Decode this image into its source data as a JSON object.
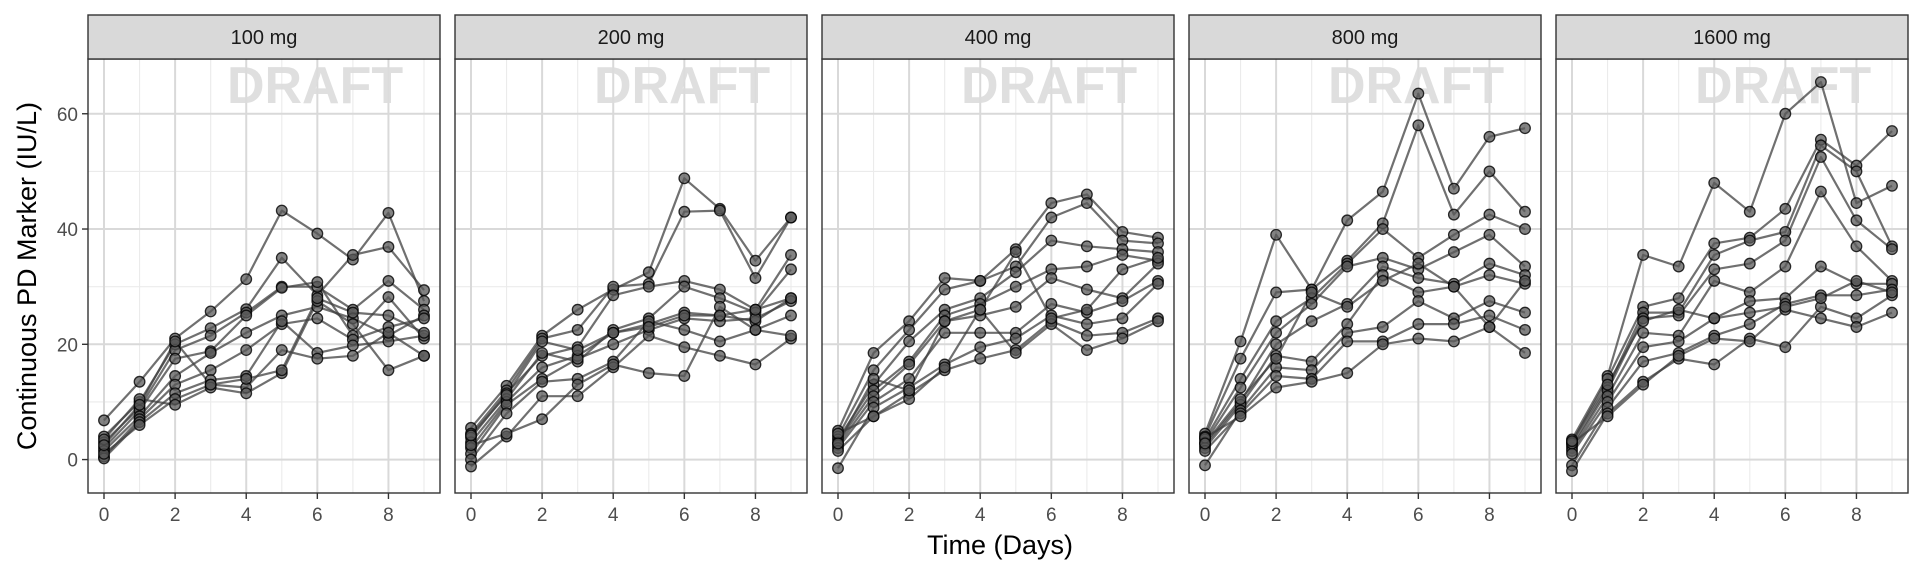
{
  "chart_data": {
    "type": "line",
    "facet_variable": "dose",
    "panels": [
      {
        "label": "100 mg",
        "series": [
          {
            "values": [
              6.8,
              13.5,
              21.0,
              25.7,
              31.3,
              43.2,
              39.2,
              34.7,
              42.8,
              27.5
            ]
          },
          {
            "values": [
              4.0,
              10.0,
              20.0,
              22.8,
              26.1,
              35.0,
              28.5,
              35.5,
              36.9,
              29.4
            ]
          },
          {
            "values": [
              3.0,
              9.0,
              19.0,
              21.5,
              25.5,
              30.0,
              30.0,
              26.0,
              31.0,
              26.0
            ]
          },
          {
            "values": [
              2.0,
              8.5,
              17.5,
              18.8,
              25.0,
              29.8,
              30.8,
              21.5,
              28.2,
              21.0
            ]
          },
          {
            "values": [
              1.5,
              7.5,
              14.5,
              18.5,
              22.0,
              25.0,
              26.5,
              24.5,
              21.5,
              25.0
            ]
          },
          {
            "values": [
              0.5,
              7.0,
              13.0,
              15.5,
              19.0,
              23.5,
              24.5,
              20.8,
              23.0,
              24.5
            ]
          },
          {
            "values": [
              0.2,
              6.5,
              11.5,
              13.8,
              14.5,
              24.0,
              18.5,
              19.8,
              20.5,
              21.5
            ]
          },
          {
            "values": [
              1.0,
              6.0,
              10.5,
              13.0,
              12.5,
              19.0,
              17.5,
              18.0,
              22.0,
              18.0
            ]
          },
          {
            "values": [
              3.5,
              10.5,
              9.5,
              12.5,
              11.5,
              15.0,
              27.5,
              23.5,
              15.5,
              18.0
            ]
          },
          {
            "values": [
              2.5,
              9.5,
              20.5,
              13.0,
              14.0,
              15.5,
              28.0,
              25.5,
              25.0,
              22.0
            ]
          }
        ]
      },
      {
        "label": "200 mg",
        "series": [
          {
            "values": [
              5.5,
              12.8,
              21.5,
              26.0,
              29.5,
              32.5,
              48.8,
              43.5,
              34.5,
              42.0
            ]
          },
          {
            "values": [
              4.5,
              12.0,
              21.0,
              22.5,
              30.0,
              30.5,
              43.0,
              43.2,
              31.5,
              42.0
            ]
          },
          {
            "values": [
              3.8,
              11.5,
              18.0,
              19.5,
              28.5,
              30.0,
              31.0,
              29.5,
              26.0,
              35.5
            ]
          },
          {
            "values": [
              3.0,
              10.5,
              18.5,
              17.0,
              22.5,
              24.5,
              30.0,
              28.0,
              25.5,
              33.0
            ]
          },
          {
            "values": [
              2.0,
              10.0,
              16.0,
              18.0,
              22.0,
              23.5,
              25.5,
              25.0,
              24.0,
              28.0
            ]
          },
          {
            "values": [
              1.0,
              9.5,
              14.0,
              17.5,
              20.0,
              22.5,
              24.5,
              24.0,
              24.5,
              27.5
            ]
          },
          {
            "values": [
              0.0,
              8.0,
              13.5,
              14.0,
              17.0,
              24.0,
              22.5,
              20.5,
              22.5,
              25.0
            ]
          },
          {
            "values": [
              -1.2,
              4.0,
              11.0,
              11.0,
              16.0,
              21.5,
              19.5,
              18.0,
              16.5,
              21.0
            ]
          },
          {
            "values": [
              2.5,
              4.5,
              7.0,
              13.0,
              16.5,
              15.0,
              14.5,
              26.5,
              22.5,
              21.5
            ]
          },
          {
            "values": [
              4.2,
              11.2,
              20.5,
              19.0,
              22.0,
              23.0,
              25.0,
              25.0,
              26.0,
              28.0
            ]
          }
        ]
      },
      {
        "label": "400 mg",
        "series": [
          {
            "values": [
              5.0,
              18.5,
              24.0,
              31.5,
              31.0,
              36.5,
              44.5,
              46.0,
              39.5,
              38.5
            ]
          },
          {
            "values": [
              4.0,
              15.5,
              22.5,
              29.5,
              31.0,
              33.5,
              42.0,
              44.5,
              38.0,
              37.5
            ]
          },
          {
            "values": [
              3.5,
              13.0,
              20.5,
              26.0,
              28.0,
              32.5,
              38.0,
              37.0,
              36.5,
              36.0
            ]
          },
          {
            "values": [
              3.0,
              12.0,
              17.0,
              25.0,
              27.0,
              30.0,
              33.0,
              33.5,
              35.5,
              34.5
            ]
          },
          {
            "values": [
              2.5,
              11.0,
              16.5,
              24.0,
              25.0,
              26.5,
              31.5,
              29.5,
              28.0,
              34.0
            ]
          },
          {
            "values": [
              2.0,
              10.0,
              14.0,
              22.0,
              22.0,
              22.0,
              27.0,
              25.5,
              27.5,
              31.0
            ]
          },
          {
            "values": [
              -1.5,
              9.0,
              12.5,
              16.5,
              19.5,
              21.0,
              25.0,
              23.5,
              24.5,
              30.5
            ]
          },
          {
            "values": [
              1.5,
              7.5,
              11.5,
              15.5,
              17.5,
              19.0,
              24.0,
              21.5,
              22.0,
              24.5
            ]
          },
          {
            "values": [
              4.5,
              7.5,
              10.5,
              16.0,
              26.0,
              18.5,
              23.5,
              19.0,
              21.0,
              24.0
            ]
          },
          {
            "values": [
              2.8,
              14.0,
              12.0,
              24.0,
              26.0,
              36.0,
              24.5,
              26.0,
              33.0,
              35.0
            ]
          }
        ]
      },
      {
        "label": "800 mg",
        "series": [
          {
            "values": [
              4.5,
              20.5,
              39.0,
              29.5,
              41.5,
              46.5,
              63.5,
              47.0,
              56.0,
              57.5
            ]
          },
          {
            "values": [
              4.0,
              17.5,
              29.0,
              29.5,
              34.5,
              41.0,
              58.0,
              42.5,
              50.0,
              43.0
            ]
          },
          {
            "values": [
              3.5,
              14.0,
              24.0,
              28.0,
              34.0,
              40.0,
              35.0,
              39.0,
              42.5,
              40.0
            ]
          },
          {
            "values": [
              3.0,
              12.5,
              22.0,
              27.0,
              33.5,
              35.0,
              33.0,
              36.0,
              39.0,
              33.5
            ]
          },
          {
            "values": [
              2.5,
              10.0,
              20.0,
              24.0,
              27.0,
              33.5,
              31.5,
              30.5,
              34.0,
              32.0
            ]
          },
          {
            "values": [
              2.0,
              9.5,
              18.0,
              17.0,
              23.5,
              32.0,
              29.0,
              30.0,
              32.0,
              30.5
            ]
          },
          {
            "values": [
              -1.0,
              8.5,
              16.0,
              15.5,
              22.0,
              23.0,
              27.5,
              24.5,
              27.5,
              25.5
            ]
          },
          {
            "values": [
              1.5,
              8.0,
              14.5,
              14.0,
              20.5,
              20.5,
              23.5,
              23.5,
              25.0,
              22.5
            ]
          },
          {
            "values": [
              3.8,
              7.5,
              12.5,
              13.5,
              15.0,
              20.0,
              21.0,
              20.5,
              23.0,
              18.5
            ]
          },
          {
            "values": [
              2.8,
              10.5,
              17.5,
              29.0,
              26.5,
              31.0,
              34.0,
              30.0,
              23.0,
              31.0
            ]
          }
        ]
      },
      {
        "label": "1600 mg",
        "series": [
          {
            "values": [
              3.5,
              14.5,
              35.5,
              33.5,
              48.0,
              43.0,
              60.0,
              65.5,
              44.5,
              47.5
            ]
          },
          {
            "values": [
              3.0,
              14.0,
              26.5,
              28.0,
              37.5,
              38.5,
              43.5,
              55.5,
              51.0,
              57.0
            ]
          },
          {
            "values": [
              2.5,
              12.5,
              25.5,
              25.5,
              35.5,
              38.0,
              39.5,
              54.5,
              50.0,
              37.0
            ]
          },
          {
            "values": [
              2.0,
              12.0,
              24.5,
              25.0,
              33.0,
              34.0,
              38.0,
              52.5,
              41.5,
              36.5
            ]
          },
          {
            "values": [
              1.5,
              11.0,
              22.0,
              21.5,
              31.0,
              29.0,
              33.5,
              46.5,
              37.0,
              31.0
            ]
          },
          {
            "values": [
              1.0,
              10.0,
              19.5,
              20.5,
              24.5,
              27.5,
              28.0,
              33.5,
              30.5,
              30.5
            ]
          },
          {
            "values": [
              -1.0,
              9.0,
              17.0,
              18.5,
              21.5,
              23.5,
              27.0,
              28.5,
              28.5,
              29.5
            ]
          },
          {
            "values": [
              -2.0,
              8.0,
              13.5,
              17.5,
              16.5,
              21.0,
              19.5,
              26.5,
              24.5,
              28.5
            ]
          },
          {
            "values": [
              2.8,
              7.5,
              13.0,
              18.0,
              21.0,
              20.5,
              26.0,
              24.5,
              23.0,
              25.5
            ]
          },
          {
            "values": [
              3.2,
              13.0,
              24.0,
              26.0,
              24.5,
              25.5,
              26.5,
              28.0,
              31.0,
              29.0
            ]
          }
        ]
      }
    ],
    "x": [
      0,
      1,
      2,
      3,
      4,
      5,
      6,
      7,
      8,
      9
    ],
    "xlabel": "Time (Days)",
    "ylabel": "Continuous PD Marker (IU/L)",
    "xlim": [
      -0.45,
      9.45
    ],
    "ylim": [
      -5.8,
      69.5
    ],
    "x_ticks": [
      0,
      2,
      4,
      6,
      8
    ],
    "y_ticks": [
      0,
      20,
      40,
      60
    ],
    "watermark": "DRAFT",
    "grid": true,
    "legend": "none",
    "colors": {
      "line": "#404040",
      "point_fill": "#5a5a5a",
      "point_stroke": "#000000",
      "strip_fill": "#d9d9d9",
      "grid_major": "#d9d9d9",
      "grid_minor": "#ebebeb",
      "watermark": "#dcdcdc",
      "tick_text": "#4d4d4d",
      "axis_title": "#000000"
    }
  }
}
